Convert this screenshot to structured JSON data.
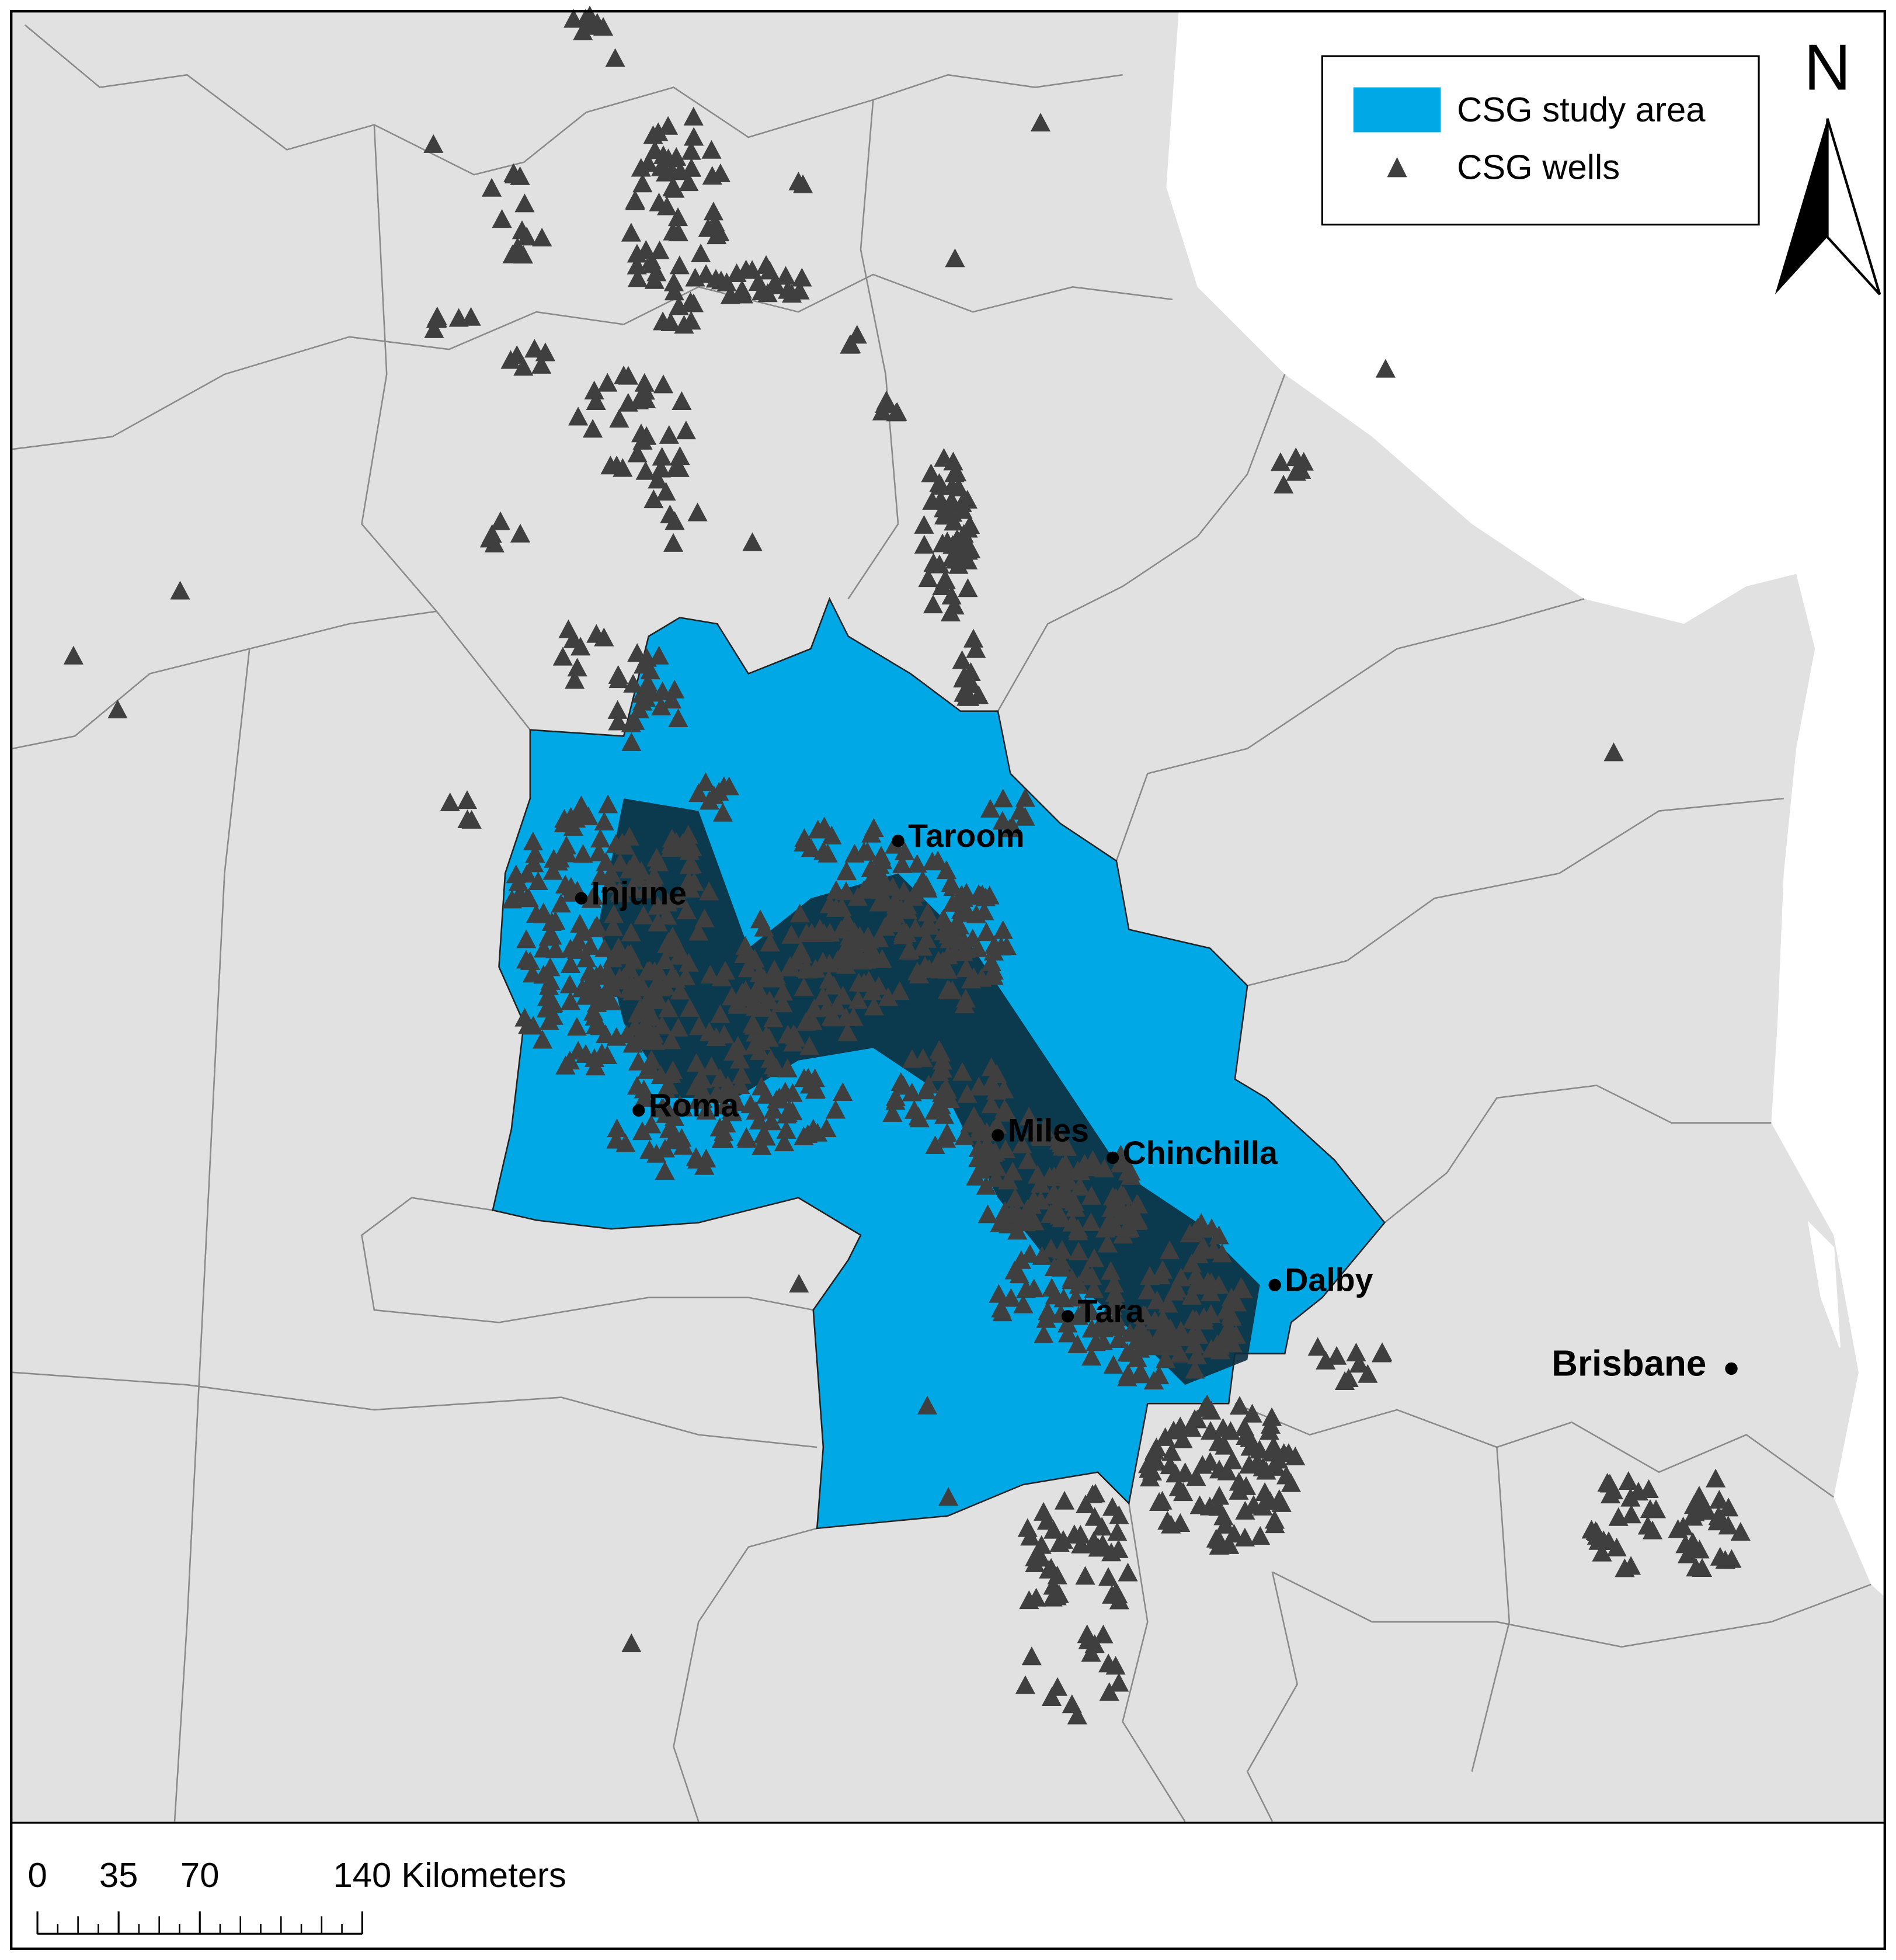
{
  "legend": {
    "items": [
      {
        "label": "CSG study area"
      },
      {
        "label": "CSG wells"
      }
    ]
  },
  "north_arrow": {
    "label": "N"
  },
  "places": [
    {
      "name": "Taroom"
    },
    {
      "name": "Injune"
    },
    {
      "name": "Roma"
    },
    {
      "name": "Miles"
    },
    {
      "name": "Chinchilla"
    },
    {
      "name": "Dalby"
    },
    {
      "name": "Tara"
    },
    {
      "name": "Brisbane"
    }
  ],
  "scale_bar": {
    "ticks": [
      0,
      35,
      70,
      140
    ],
    "unit": "Kilometers"
  }
}
